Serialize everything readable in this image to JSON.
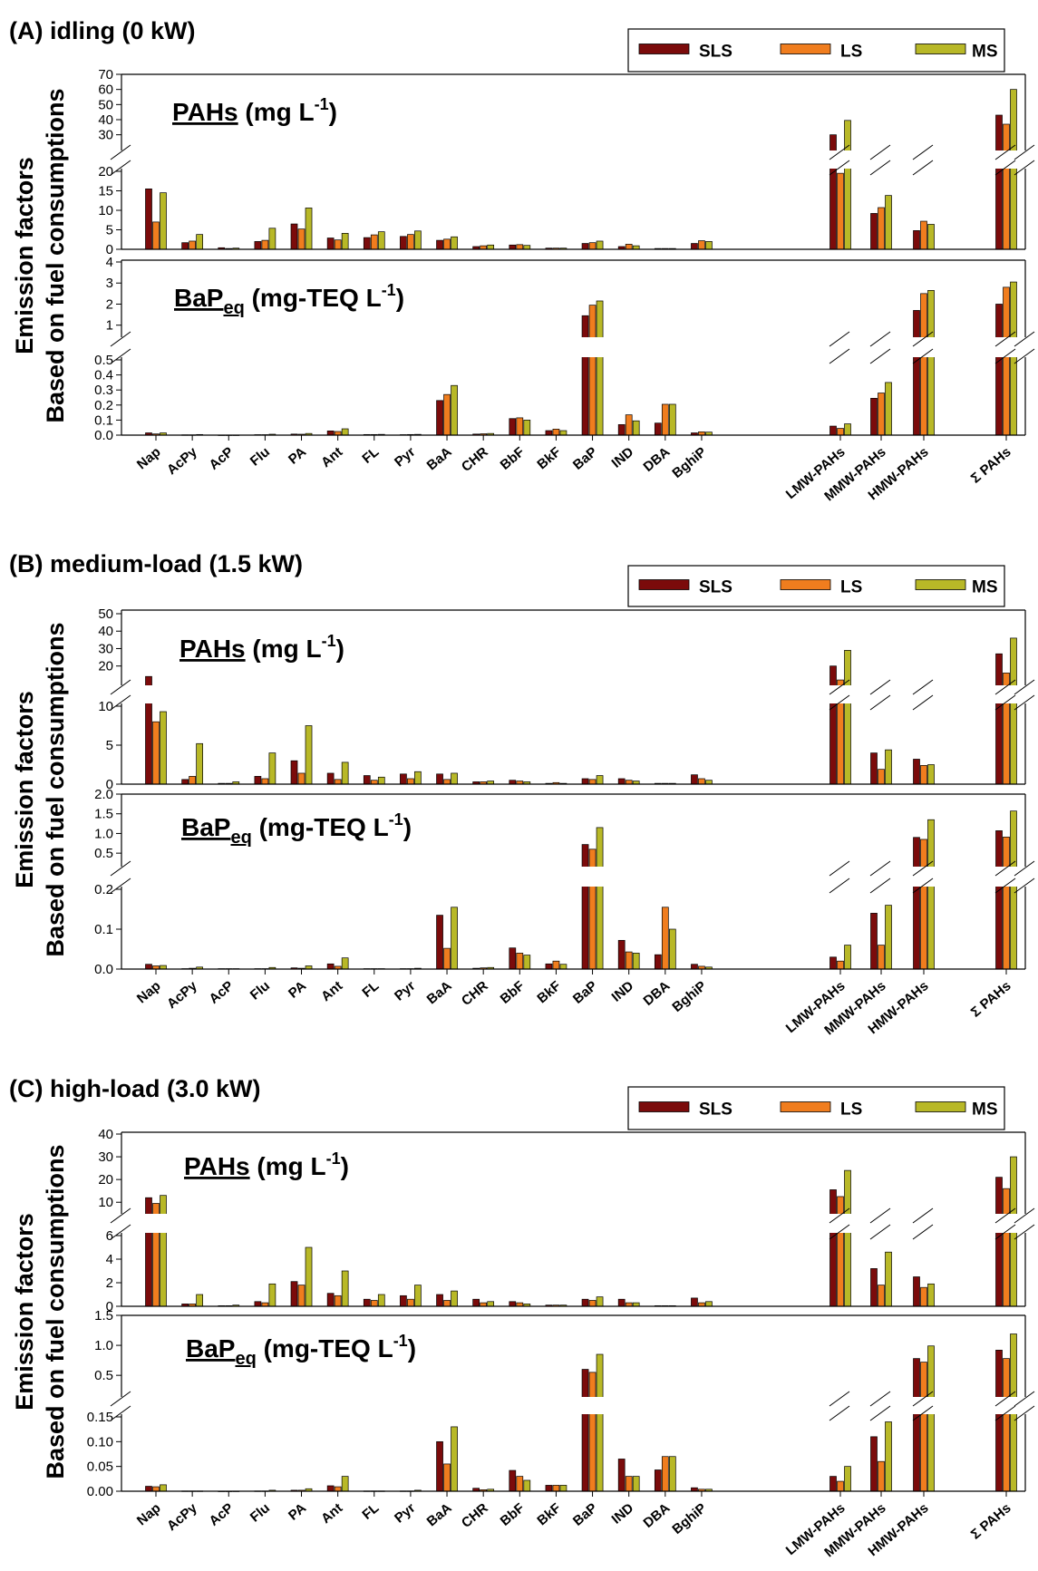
{
  "figure": {
    "ylabel_line1": "Emission factors",
    "ylabel_line2": "Based on fuel consumptions",
    "categories": [
      "Nap",
      "AcPy",
      "AcP",
      "Flu",
      "PA",
      "Ant",
      "FL",
      "Pyr",
      "BaA",
      "CHR",
      "BbF",
      "BkF",
      "BaP",
      "IND",
      "DBA",
      "BghiP",
      "LMW-PAHs",
      "MMW-PAHs",
      "HMW-PAHs",
      "Σ PAHs"
    ],
    "legend": [
      {
        "name": "SLS",
        "color": "#7b0b0b"
      },
      {
        "name": "LS",
        "color": "#f07d1e"
      },
      {
        "name": "MS",
        "color": "#b8b827"
      }
    ]
  },
  "chart_data": [
    {
      "type": "bar",
      "title": "(A) idling (0 kW)",
      "categories": [
        "Nap",
        "AcPy",
        "AcP",
        "Flu",
        "PA",
        "Ant",
        "FL",
        "Pyr",
        "BaA",
        "CHR",
        "BbF",
        "BkF",
        "BaP",
        "IND",
        "DBA",
        "BghiP",
        "LMW-PAHs",
        "MMW-PAHs",
        "HMW-PAHs",
        "Σ PAHs"
      ],
      "panels": [
        {
          "label": "PAHs",
          "unit": "(mg L",
          "unit_sup": "-1",
          "unit_close": ")",
          "upper_ticks": [
            30,
            40,
            50,
            60,
            70
          ],
          "upper_range": [
            22,
            70
          ],
          "lower_ticks": [
            0,
            5,
            10,
            15,
            20
          ],
          "lower_range": [
            0,
            20
          ],
          "series": [
            {
              "name": "SLS",
              "values": [
                15.5,
                1.7,
                0.4,
                2.0,
                6.5,
                2.9,
                3.0,
                3.3,
                2.3,
                0.7,
                1.1,
                0.3,
                1.5,
                0.7,
                0.2,
                1.5,
                30,
                9.2,
                4.8,
                43
              ]
            },
            {
              "name": "LS",
              "values": [
                7.0,
                2.1,
                0.2,
                2.3,
                5.2,
                2.4,
                3.7,
                3.8,
                2.6,
                0.9,
                1.2,
                0.3,
                1.7,
                1.3,
                0.2,
                2.2,
                19.5,
                10.7,
                7.2,
                37
              ]
            },
            {
              "name": "MS",
              "values": [
                14.5,
                3.8,
                0.3,
                5.4,
                10.6,
                4.1,
                4.5,
                4.7,
                3.2,
                1.1,
                1.0,
                0.3,
                2.1,
                0.9,
                0.2,
                2.0,
                39.5,
                13.8,
                6.4,
                60
              ]
            }
          ]
        },
        {
          "label": "BaP",
          "label_sub": "eq",
          "unit": "(mg-TEQ L",
          "unit_sup": "-1",
          "unit_close": ")",
          "upper_ticks": [
            1.0,
            2.0,
            3.0,
            4.0
          ],
          "upper_range": [
            0.6,
            4.0
          ],
          "lower_ticks": [
            0.0,
            0.1,
            0.2,
            0.3,
            0.4,
            0.5
          ],
          "lower_range": [
            0,
            0.5
          ],
          "series": [
            {
              "name": "SLS",
              "values": [
                0.015,
                0.002,
                0.001,
                0.003,
                0.007,
                0.028,
                0.004,
                0.003,
                0.23,
                0.007,
                0.11,
                0.03,
                1.45,
                0.07,
                0.08,
                0.015,
                0.06,
                0.245,
                1.7,
                2.0
              ]
            },
            {
              "name": "LS",
              "values": [
                0.008,
                0.002,
                0.001,
                0.003,
                0.006,
                0.024,
                0.004,
                0.004,
                0.27,
                0.009,
                0.115,
                0.04,
                1.95,
                0.135,
                0.205,
                0.022,
                0.045,
                0.28,
                2.5,
                2.8
              ]
            },
            {
              "name": "MS",
              "values": [
                0.015,
                0.004,
                0.001,
                0.006,
                0.011,
                0.042,
                0.005,
                0.005,
                0.33,
                0.011,
                0.1,
                0.03,
                2.15,
                0.095,
                0.205,
                0.02,
                0.075,
                0.35,
                2.65,
                3.05
              ]
            }
          ]
        }
      ]
    },
    {
      "type": "bar",
      "title": "(B) medium-load (1.5 kW)",
      "categories": [
        "Nap",
        "AcPy",
        "AcP",
        "Flu",
        "PA",
        "Ant",
        "FL",
        "Pyr",
        "BaA",
        "CHR",
        "BbF",
        "BkF",
        "BaP",
        "IND",
        "DBA",
        "BghiP",
        "LMW-PAHs",
        "MMW-PAHs",
        "HMW-PAHs",
        "Σ PAHs"
      ],
      "panels": [
        {
          "label": "PAHs",
          "unit": "(mg L",
          "unit_sup": "-1",
          "unit_close": ")",
          "upper_ticks": [
            20,
            30,
            40,
            50
          ],
          "upper_range": [
            11,
            50
          ],
          "lower_ticks": [
            0,
            5,
            10
          ],
          "lower_range": [
            0,
            10
          ],
          "series": [
            {
              "name": "SLS",
              "values": [
                14,
                0.6,
                0.1,
                1.0,
                3.0,
                1.4,
                1.1,
                1.3,
                1.3,
                0.3,
                0.5,
                0.1,
                0.7,
                0.7,
                0.1,
                1.2,
                20,
                4.0,
                3.2,
                27
              ]
            },
            {
              "name": "LS",
              "values": [
                8.0,
                1.0,
                0.1,
                0.7,
                1.4,
                0.6,
                0.5,
                0.7,
                0.6,
                0.3,
                0.4,
                0.2,
                0.6,
                0.5,
                0.1,
                0.7,
                12,
                1.9,
                2.4,
                16
              ]
            },
            {
              "name": "MS",
              "values": [
                9.3,
                5.2,
                0.3,
                4.0,
                7.5,
                2.8,
                0.9,
                1.6,
                1.4,
                0.4,
                0.3,
                0.1,
                1.1,
                0.4,
                0.1,
                0.5,
                29,
                4.4,
                2.5,
                36
              ]
            }
          ]
        },
        {
          "label": "BaP",
          "label_sub": "eq",
          "unit": "(mg-TEQ L",
          "unit_sup": "-1",
          "unit_close": ")",
          "upper_ticks": [
            0.5,
            1.0,
            1.5,
            2.0
          ],
          "upper_range": [
            0.25,
            2.0
          ],
          "lower_ticks": [
            0.0,
            0.1,
            0.2
          ],
          "lower_range": [
            0,
            0.2
          ],
          "series": [
            {
              "name": "SLS",
              "values": [
                0.012,
                0.001,
                0.001,
                0.001,
                0.003,
                0.013,
                0.001,
                0.001,
                0.135,
                0.002,
                0.053,
                0.013,
                0.72,
                0.072,
                0.036,
                0.012,
                0.03,
                0.14,
                0.9,
                1.07
              ]
            },
            {
              "name": "LS",
              "values": [
                0.008,
                0.002,
                0.001,
                0.001,
                0.002,
                0.007,
                0.001,
                0.001,
                0.052,
                0.003,
                0.04,
                0.02,
                0.6,
                0.043,
                0.155,
                0.007,
                0.02,
                0.06,
                0.85,
                0.91
              ]
            },
            {
              "name": "MS",
              "values": [
                0.009,
                0.005,
                0.001,
                0.004,
                0.008,
                0.028,
                0.001,
                0.002,
                0.155,
                0.004,
                0.035,
                0.012,
                1.15,
                0.04,
                0.1,
                0.005,
                0.06,
                0.16,
                1.35,
                1.57
              ]
            }
          ]
        }
      ]
    },
    {
      "type": "bar",
      "title": "(C) high-load (3.0 kW)",
      "categories": [
        "Nap",
        "AcPy",
        "AcP",
        "Flu",
        "PA",
        "Ant",
        "FL",
        "Pyr",
        "BaA",
        "CHR",
        "BbF",
        "BkF",
        "BaP",
        "IND",
        "DBA",
        "BghiP",
        "LMW-PAHs",
        "MMW-PAHs",
        "HMW-PAHs",
        "Σ PAHs"
      ],
      "panels": [
        {
          "label": "PAHs",
          "unit": "(mg L",
          "unit_sup": "-1",
          "unit_close": ")",
          "upper_ticks": [
            10,
            20,
            30,
            40
          ],
          "upper_range": [
            6.5,
            40
          ],
          "lower_ticks": [
            0,
            2,
            4,
            6
          ],
          "lower_range": [
            0,
            6
          ],
          "series": [
            {
              "name": "SLS",
              "values": [
                12,
                0.2,
                0.05,
                0.4,
                2.1,
                1.1,
                0.6,
                0.9,
                1.0,
                0.6,
                0.4,
                0.1,
                0.6,
                0.6,
                0.05,
                0.7,
                15.5,
                3.2,
                2.5,
                21
              ]
            },
            {
              "name": "LS",
              "values": [
                9.5,
                0.2,
                0.05,
                0.3,
                1.8,
                0.9,
                0.5,
                0.6,
                0.5,
                0.3,
                0.3,
                0.1,
                0.5,
                0.3,
                0.05,
                0.3,
                12.5,
                1.8,
                1.6,
                16
              ]
            },
            {
              "name": "MS",
              "values": [
                13,
                1.0,
                0.1,
                1.9,
                5.0,
                3.0,
                1.0,
                1.8,
                1.3,
                0.4,
                0.2,
                0.1,
                0.8,
                0.3,
                0.05,
                0.4,
                24,
                4.6,
                1.9,
                30
              ]
            }
          ]
        },
        {
          "label": "BaP",
          "label_sub": "eq",
          "unit": "(mg-TEQ L",
          "unit_sup": "-1",
          "unit_close": ")",
          "upper_ticks": [
            0.5,
            1.0,
            1.5
          ],
          "upper_range": [
            0.2,
            1.5
          ],
          "lower_ticks": [
            0.0,
            0.05,
            0.1,
            0.15
          ],
          "lower_range": [
            0,
            0.15
          ],
          "series": [
            {
              "name": "SLS",
              "values": [
                0.01,
                0.0005,
                0.0002,
                0.0005,
                0.002,
                0.011,
                0.0005,
                0.0005,
                0.1,
                0.006,
                0.042,
                0.012,
                0.6,
                0.065,
                0.043,
                0.007,
                0.03,
                0.11,
                0.78,
                0.92
              ]
            },
            {
              "name": "LS",
              "values": [
                0.009,
                0.0005,
                0.0002,
                0.0005,
                0.002,
                0.009,
                0.0005,
                0.0005,
                0.055,
                0.003,
                0.03,
                0.012,
                0.55,
                0.03,
                0.07,
                0.004,
                0.02,
                0.06,
                0.72,
                0.78
              ]
            },
            {
              "name": "MS",
              "values": [
                0.013,
                0.0005,
                0.0003,
                0.002,
                0.005,
                0.03,
                0.0005,
                0.002,
                0.13,
                0.004,
                0.022,
                0.012,
                0.85,
                0.03,
                0.07,
                0.004,
                0.05,
                0.14,
                0.99,
                1.19
              ]
            }
          ]
        }
      ]
    }
  ]
}
